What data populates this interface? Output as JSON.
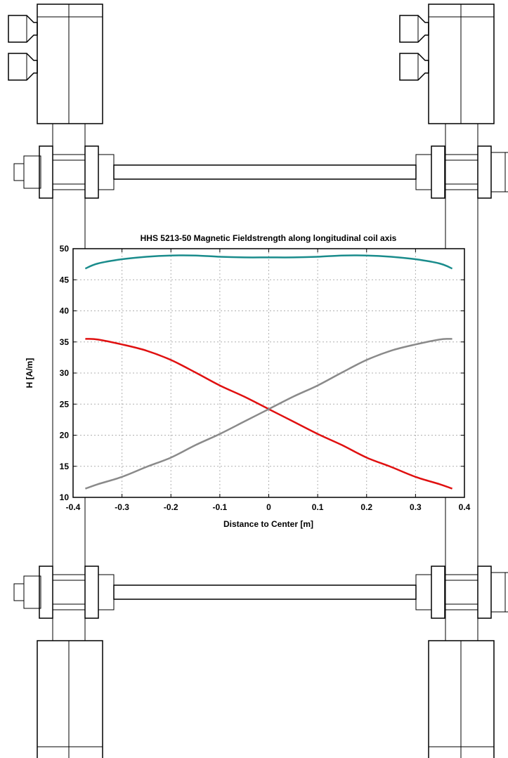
{
  "chart_data": {
    "type": "line",
    "title": "HHS 5213-50 Magnetic Fieldstrength along longitudinal coil axis",
    "xlabel": "Distance to Center [m]",
    "ylabel": "H [A/m]",
    "xlim": [
      -0.4,
      0.4
    ],
    "ylim": [
      10,
      50
    ],
    "xticks": [
      -0.4,
      -0.3,
      -0.2,
      -0.1,
      0,
      0.1,
      0.2,
      0.3,
      0.4
    ],
    "yticks": [
      10,
      15,
      20,
      25,
      30,
      35,
      40,
      45,
      50
    ],
    "xtick_labels": [
      "-0.4",
      "-0.3",
      "-0.2",
      "-0.1",
      "0",
      "0.1",
      "0.2",
      "0.3",
      "0.4"
    ],
    "ytick_labels": [
      "10",
      "15",
      "20",
      "25",
      "30",
      "35",
      "40",
      "45",
      "50"
    ],
    "grid": true,
    "x": [
      -0.375,
      -0.35,
      -0.3,
      -0.25,
      -0.2,
      -0.15,
      -0.1,
      -0.05,
      0,
      0.05,
      0.1,
      0.15,
      0.2,
      0.25,
      0.3,
      0.35,
      0.375
    ],
    "series": [
      {
        "color": "#1a8c8c",
        "values": [
          46.8,
          47.6,
          48.3,
          48.7,
          48.9,
          48.9,
          48.7,
          48.6,
          48.6,
          48.6,
          48.7,
          48.9,
          48.9,
          48.7,
          48.3,
          47.6,
          46.8
        ]
      },
      {
        "color": "#e01010",
        "values": [
          35.5,
          35.4,
          34.6,
          33.6,
          32.1,
          30.1,
          28.0,
          26.2,
          24.2,
          22.2,
          20.2,
          18.4,
          16.4,
          14.9,
          13.3,
          12.1,
          11.4
        ]
      },
      {
        "color": "#8a8a8a",
        "values": [
          11.4,
          12.1,
          13.3,
          14.9,
          16.4,
          18.4,
          20.2,
          22.2,
          24.2,
          26.2,
          28.0,
          30.1,
          32.1,
          33.6,
          34.6,
          35.4,
          35.5
        ]
      }
    ]
  }
}
